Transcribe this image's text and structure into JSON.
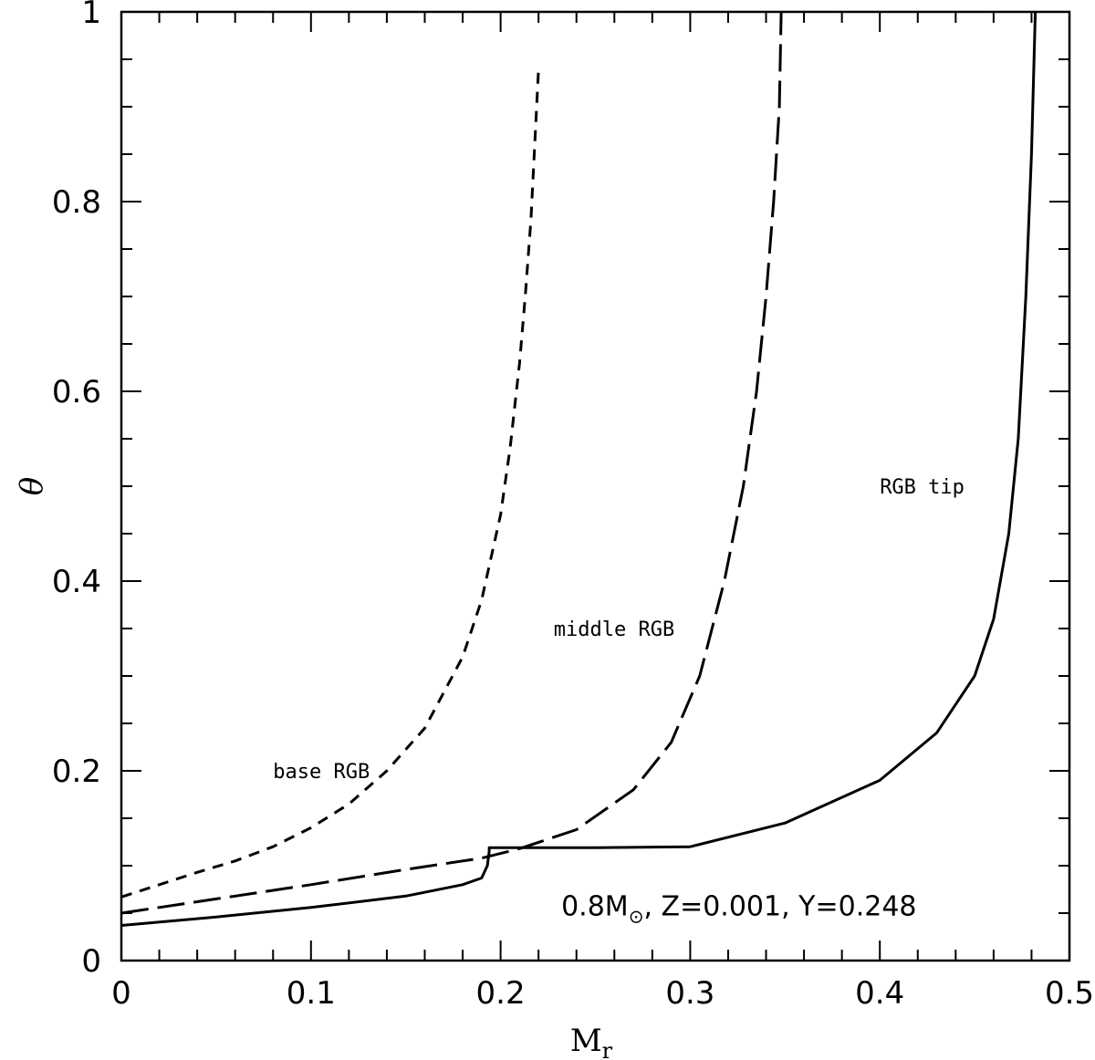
{
  "chart_data": {
    "type": "line",
    "xlabel": "M",
    "xlabel_sub": "r",
    "ylabel": "θ",
    "xlim": [
      0,
      0.5
    ],
    "ylim": [
      0,
      1
    ],
    "x_ticks": [
      0,
      0.1,
      0.2,
      0.3,
      0.4,
      0.5
    ],
    "x_tick_labels": [
      "0",
      "0.1",
      "0.2",
      "0.3",
      "0.4",
      "0.5"
    ],
    "y_ticks": [
      0,
      0.2,
      0.4,
      0.6,
      0.8,
      1
    ],
    "y_tick_labels": [
      "0",
      "0.2",
      "0.4",
      "0.6",
      "0.8",
      "1"
    ],
    "grid": false,
    "series": [
      {
        "name": "base RGB",
        "style": "short-dash",
        "label_at": [
          0.08,
          0.2
        ],
        "x": [
          0,
          0.02,
          0.04,
          0.06,
          0.08,
          0.1,
          0.12,
          0.14,
          0.16,
          0.18,
          0.19,
          0.2,
          0.205,
          0.21,
          0.213,
          0.216,
          0.218,
          0.22
        ],
        "y": [
          0.067,
          0.08,
          0.093,
          0.105,
          0.12,
          0.14,
          0.165,
          0.2,
          0.245,
          0.32,
          0.38,
          0.47,
          0.54,
          0.63,
          0.7,
          0.78,
          0.86,
          0.94
        ]
      },
      {
        "name": "middle RGB",
        "style": "long-dash",
        "label_at": [
          0.228,
          0.35
        ],
        "x": [
          0,
          0.05,
          0.1,
          0.15,
          0.19,
          0.21,
          0.24,
          0.27,
          0.29,
          0.305,
          0.318,
          0.328,
          0.335,
          0.34,
          0.344,
          0.347,
          0.348
        ],
        "y": [
          0.05,
          0.065,
          0.08,
          0.096,
          0.108,
          0.118,
          0.138,
          0.18,
          0.23,
          0.3,
          0.4,
          0.5,
          0.6,
          0.7,
          0.8,
          0.9,
          1.0
        ]
      },
      {
        "name": "RGB tip",
        "style": "solid",
        "label_at": [
          0.4,
          0.5
        ],
        "x": [
          0,
          0.05,
          0.1,
          0.15,
          0.18,
          0.19,
          0.193,
          0.194,
          0.194,
          0.25,
          0.3,
          0.35,
          0.4,
          0.43,
          0.45,
          0.46,
          0.468,
          0.473,
          0.477,
          0.48,
          0.482
        ],
        "y": [
          0.037,
          0.046,
          0.056,
          0.068,
          0.08,
          0.087,
          0.1,
          0.115,
          0.119,
          0.119,
          0.12,
          0.145,
          0.19,
          0.24,
          0.3,
          0.36,
          0.45,
          0.55,
          0.7,
          0.85,
          1.0
        ]
      }
    ],
    "annotation": {
      "text_before": "0.8M",
      "sub": "⊙",
      "text_after": ", Z=0.001, Y=0.248",
      "at": [
        0.232,
        0.057
      ]
    }
  }
}
